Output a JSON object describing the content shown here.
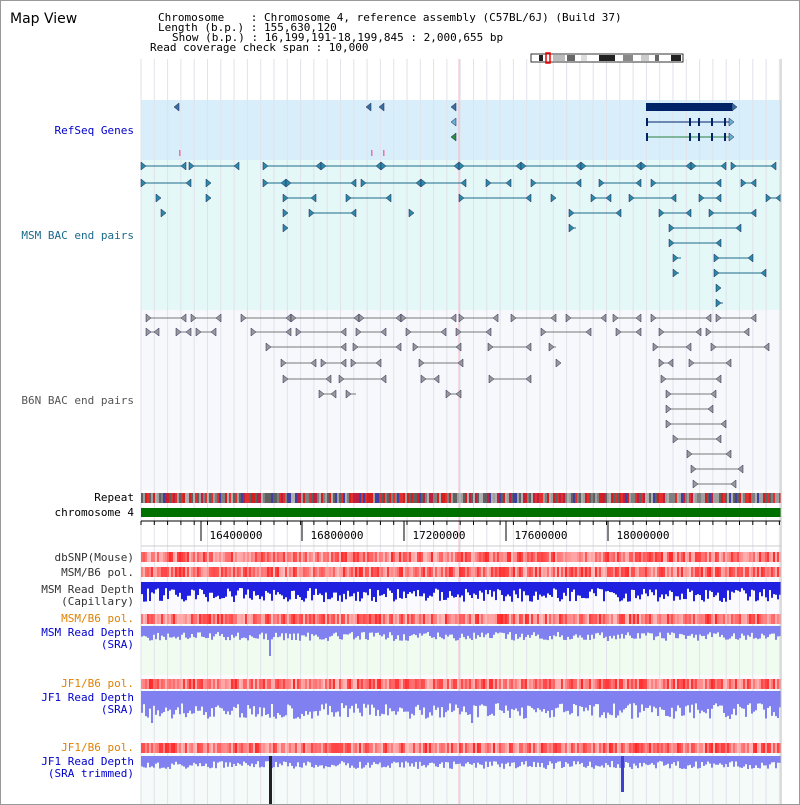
{
  "view_title": "Map View",
  "info": {
    "chromosome_line": "Chromosome    : Chromosome 4, reference assembly (C57BL/6J) (Build 37)",
    "length_line": "Length (b.p.) : 155,630,120",
    "show_line": "Show (b.p.) : 16,199,191-18,199,845 : 2,000,655 bp",
    "coverage_line": "Read coverage check span : 10,000"
  },
  "tracks": {
    "refseq": "RefSeq Genes",
    "msm_bac": "MSM BAC end pairs",
    "b6n_bac": "B6N BAC end pairs",
    "repeat": "Repeat",
    "chromosome": "chromosome 4",
    "dbsnp": "dbSNP(Mouse)",
    "msm_b6_pol_1": "MSM/B6 pol.",
    "msm_depth_cap": "MSM Read Depth\n(Capillary)",
    "msm_b6_pol_2": "MSM/B6 pol.",
    "msm_depth_sra": "MSM Read Depth\n(SRA)",
    "jf1_b6_pol_1": "JF1/B6 pol.",
    "jf1_depth_sra": "JF1 Read Depth\n(SRA)",
    "jf1_b6_pol_2": "JF1/B6 pol.",
    "jf1_depth_trim": "JF1 Read Depth\n(SRA trimmed)"
  },
  "ruler": {
    "ticks": [
      "16400000",
      "16800000",
      "17200000",
      "17600000",
      "18000000"
    ]
  },
  "colors": {
    "refseq_bg": "#d8eefa",
    "msm_bac_bg": "#e4f8f8",
    "b6n_bac_bg": "#f6f8fb",
    "chromosome_bar": "#007000",
    "msm_depth_bg": "#f0fcf0",
    "depth_blue": "#2020e0",
    "depth_lightblue": "#8080f0",
    "label_blue": "#0000cc",
    "label_orange": "#e08000"
  }
}
